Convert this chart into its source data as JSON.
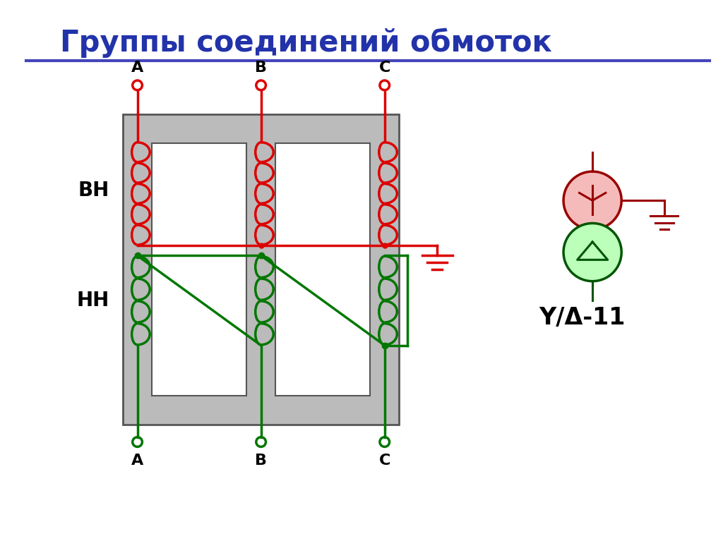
{
  "title": "Группы соединений обмоток",
  "title_color": "#2233AA",
  "title_fontsize": 30,
  "bg_color": "#FFFFFF",
  "red_color": "#DD0000",
  "green_color": "#007700",
  "dark_red": "#990000",
  "dark_green": "#005500",
  "gray_color": "#BBBBBB",
  "dark_gray": "#666666",
  "line_lw": 2.5,
  "core_color": "#BBBBBB",
  "core_edge": "#555555",
  "label_BH": "ВН",
  "label_NN": "НН",
  "yd_label": "Y/Δ-11",
  "blue_line_color": "#4444BB"
}
